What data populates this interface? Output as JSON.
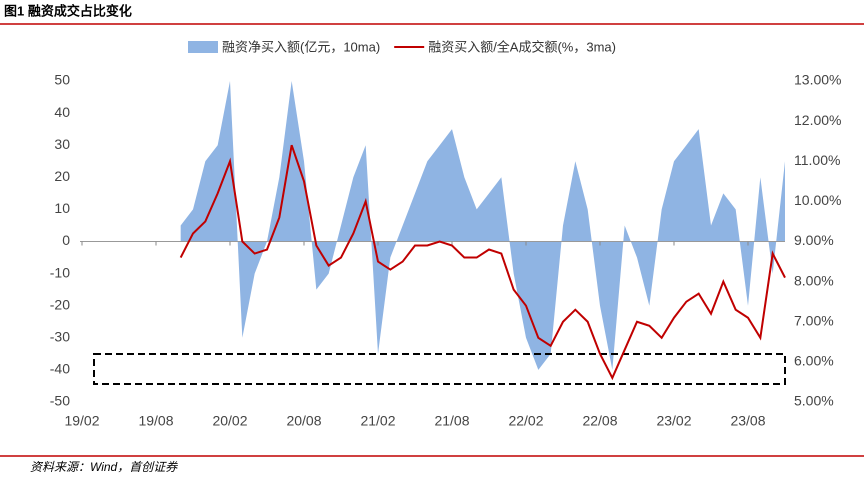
{
  "page_title": "图1 融资成交占比变化",
  "source": "资料来源：Wind，首创证券",
  "chart_data": {
    "type": "area-line",
    "x": [
      "19/10",
      "19/11",
      "19/12",
      "20/01",
      "20/02",
      "20/03",
      "20/04",
      "20/05",
      "20/06",
      "20/07",
      "20/08",
      "20/09",
      "20/10",
      "20/11",
      "20/12",
      "21/01",
      "21/02",
      "21/03",
      "21/04",
      "21/05",
      "21/06",
      "21/07",
      "21/08",
      "21/09",
      "21/10",
      "21/11",
      "21/12",
      "22/01",
      "22/02",
      "22/03",
      "22/04",
      "22/05",
      "22/06",
      "22/07",
      "22/08",
      "22/09",
      "22/10",
      "22/11",
      "22/12",
      "23/01",
      "23/02",
      "23/03",
      "23/04",
      "23/05",
      "23/06",
      "23/07",
      "23/08",
      "23/09",
      "23/10",
      "23/11"
    ],
    "xlim": [
      "19/02",
      "23/11"
    ],
    "xticks": [
      "19/02",
      "19/08",
      "20/02",
      "20/08",
      "21/02",
      "21/08",
      "22/02",
      "22/08",
      "23/02",
      "23/08"
    ],
    "ylim": [
      -50,
      50
    ],
    "yticks": [
      -50,
      -40,
      -30,
      -20,
      -10,
      0,
      10,
      20,
      30,
      40,
      50
    ],
    "y2lim": [
      5,
      13
    ],
    "y2ticks": [
      {
        "value": 5,
        "label": "5.00%"
      },
      {
        "value": 6,
        "label": "6.00%"
      },
      {
        "value": 7,
        "label": "7.00%"
      },
      {
        "value": 8,
        "label": "8.00%"
      },
      {
        "value": 9,
        "label": "9.00%"
      },
      {
        "value": 10,
        "label": "10.00%"
      },
      {
        "value": 11,
        "label": "11.00%"
      },
      {
        "value": 12,
        "label": "12.00%"
      },
      {
        "value": 13,
        "label": "13.00%"
      }
    ],
    "series": [
      {
        "name": "融资净买入额(亿元，10ma)",
        "color": "#8fb4e3",
        "kind": "area",
        "values": [
          5,
          10,
          25,
          30,
          50,
          -30,
          -10,
          0,
          20,
          50,
          25,
          -15,
          -10,
          5,
          20,
          30,
          -35,
          -5,
          5,
          15,
          25,
          30,
          35,
          20,
          10,
          15,
          20,
          -10,
          -30,
          -40,
          -35,
          5,
          25,
          10,
          -20,
          -40,
          5,
          -5,
          -20,
          10,
          25,
          30,
          35,
          5,
          15,
          10,
          -20,
          20,
          -10,
          25
        ]
      },
      {
        "name": "融资买入额/全A成交额(%，3ma)",
        "color": "#c00000",
        "kind": "line",
        "axis": "y2",
        "values": [
          8.6,
          9.2,
          9.5,
          10.2,
          11.0,
          9.0,
          8.7,
          8.8,
          9.6,
          11.4,
          10.5,
          8.9,
          8.4,
          8.6,
          9.2,
          10.0,
          8.5,
          8.3,
          8.5,
          8.9,
          8.9,
          9.0,
          8.9,
          8.6,
          8.6,
          8.8,
          8.7,
          7.8,
          7.4,
          6.6,
          6.4,
          7.0,
          7.3,
          7.0,
          6.2,
          5.6,
          6.3,
          7.0,
          6.9,
          6.6,
          7.1,
          7.5,
          7.7,
          7.2,
          8.0,
          7.3,
          7.1,
          6.6,
          8.7,
          8.1
        ]
      }
    ]
  }
}
